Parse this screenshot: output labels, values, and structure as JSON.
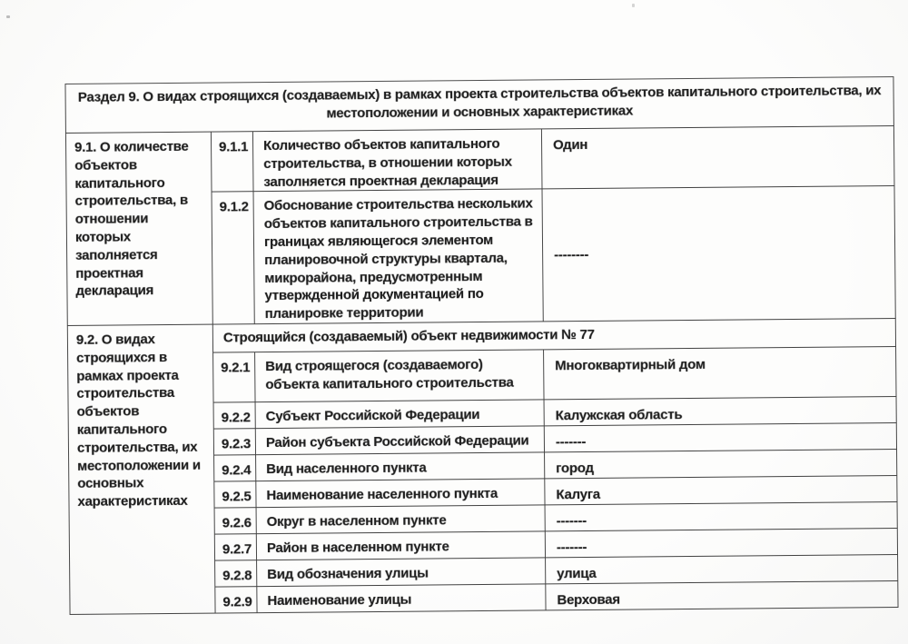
{
  "table": {
    "header": "Раздел 9. О видах строящихся (создаваемых) в рамках проекта строительства объектов капитального строительства, их местоположении и основных характеристиках",
    "groups": [
      {
        "label": "9.1. О количестве объектов капитального строительства, в отношении которых заполняется проектная декларация",
        "rows": [
          {
            "code": "9.1.1",
            "label": "Количество объектов капитального строительства, в отношении которых заполняется проектная декларация",
            "value": "Один"
          },
          {
            "code": "9.1.2",
            "label": "Обоснование строительства нескольких объектов капитального строительства в границах являющегося элементом планировочной структуры квартала, микрорайона, предусмотренным утвержденной документацией по планировке территории",
            "value": "--------"
          }
        ]
      },
      {
        "label": "9.2. О видах строящихся в рамках проекта строительства объектов капитального строительства, их местоположении и основных характеристиках",
        "subheader": "Строящийся (создаваемый) объект недвижимости № 77",
        "rows": [
          {
            "code": "9.2.1",
            "label": "Вид строящегося (создаваемого) объекта капитального строительства",
            "value": "Многоквартирный дом"
          },
          {
            "code": "9.2.2",
            "label": "Субъект Российской Федерации",
            "value": "Калужская область"
          },
          {
            "code": "9.2.3",
            "label": "Район субъекта Российской Федерации",
            "value": "-------"
          },
          {
            "code": "9.2.4",
            "label": "Вид населенного пункта",
            "value": "город"
          },
          {
            "code": "9.2.5",
            "label": "Наименование населенного пункта",
            "value": "Калуга"
          },
          {
            "code": "9.2.6",
            "label": "Округ в населенном пункте",
            "value": "-------"
          },
          {
            "code": "9.2.7",
            "label": "Район в населенном пункте",
            "value": "-------"
          },
          {
            "code": "9.2.8",
            "label": "Вид обозначения улицы",
            "value": "улица"
          },
          {
            "code": "9.2.9",
            "label": "Наименование улицы",
            "value": "Верховая"
          }
        ]
      }
    ]
  }
}
